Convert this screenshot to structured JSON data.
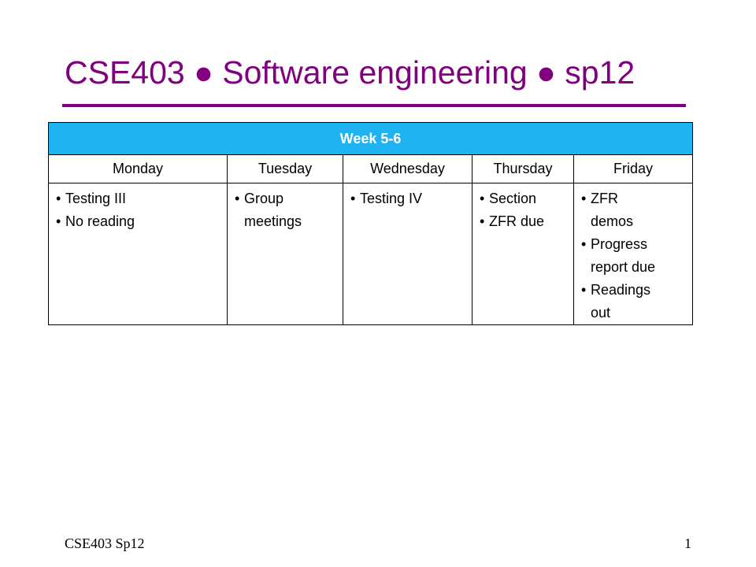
{
  "slide": {
    "title": "CSE403 ● Software engineering ● sp12",
    "colors": {
      "title": "#800080",
      "week_header_bg": "#1fb3f2"
    }
  },
  "schedule": {
    "week_label": "Week 5-6",
    "bullet": "•",
    "days": [
      {
        "name": "Monday",
        "items": [
          "Testing III",
          "No reading"
        ]
      },
      {
        "name": "Tuesday",
        "items": [
          "Group meetings"
        ]
      },
      {
        "name": "Wednesday",
        "items": [
          "Testing IV"
        ]
      },
      {
        "name": "Thursday",
        "items": [
          "Section",
          "ZFR due"
        ]
      },
      {
        "name": "Friday",
        "items": [
          "ZFR demos",
          "Progress report due",
          "Readings out"
        ]
      }
    ]
  },
  "footer": {
    "course": "CSE403 Sp12",
    "page_number": "1"
  }
}
